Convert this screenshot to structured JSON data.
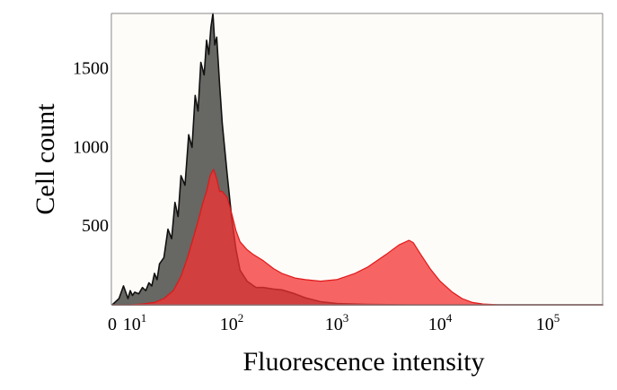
{
  "chart_data": {
    "type": "area",
    "xlabel": "Fluorescence intensity",
    "ylabel": "Cell count",
    "x_scale": "log",
    "xlim": [
      0,
      300000
    ],
    "ylim": [
      0,
      1850
    ],
    "grid": false,
    "legend": "none",
    "x_ticks": [
      {
        "base": "0",
        "exp": ""
      },
      {
        "base": "10",
        "exp": "1"
      },
      {
        "base": "10",
        "exp": "2"
      },
      {
        "base": "10",
        "exp": "3"
      },
      {
        "base": "10",
        "exp": "4"
      },
      {
        "base": "10",
        "exp": "5"
      }
    ],
    "y_ticks": [
      "500",
      "1000",
      "1500"
    ],
    "series": [
      {
        "color": "#5f5f5b",
        "points": [
          [
            0,
            0
          ],
          [
            3,
            40
          ],
          [
            5,
            120
          ],
          [
            6,
            80
          ],
          [
            7,
            40
          ],
          [
            8,
            90
          ],
          [
            9,
            60
          ],
          [
            10,
            80
          ],
          [
            11,
            70
          ],
          [
            12,
            110
          ],
          [
            13,
            90
          ],
          [
            14,
            140
          ],
          [
            15,
            120
          ],
          [
            16,
            200
          ],
          [
            17,
            160
          ],
          [
            18,
            260
          ],
          [
            20,
            300
          ],
          [
            22,
            480
          ],
          [
            24,
            420
          ],
          [
            26,
            650
          ],
          [
            28,
            560
          ],
          [
            30,
            820
          ],
          [
            33,
            760
          ],
          [
            36,
            1080
          ],
          [
            39,
            1000
          ],
          [
            42,
            1330
          ],
          [
            45,
            1230
          ],
          [
            48,
            1540
          ],
          [
            52,
            1460
          ],
          [
            55,
            1680
          ],
          [
            58,
            1590
          ],
          [
            61,
            1760
          ],
          [
            64,
            1850
          ],
          [
            67,
            1650
          ],
          [
            70,
            1700
          ],
          [
            75,
            1400
          ],
          [
            80,
            1150
          ],
          [
            90,
            820
          ],
          [
            100,
            550
          ],
          [
            110,
            350
          ],
          [
            120,
            220
          ],
          [
            140,
            150
          ],
          [
            170,
            110
          ],
          [
            200,
            110
          ],
          [
            250,
            100
          ],
          [
            300,
            95
          ],
          [
            400,
            70
          ],
          [
            500,
            45
          ],
          [
            700,
            20
          ],
          [
            1000,
            8
          ],
          [
            2000,
            2
          ],
          [
            5000,
            0
          ],
          [
            300000,
            0
          ]
        ]
      },
      {
        "color": "#f43232",
        "points": [
          [
            0,
            0
          ],
          [
            8,
            0
          ],
          [
            12,
            5
          ],
          [
            16,
            15
          ],
          [
            20,
            40
          ],
          [
            25,
            90
          ],
          [
            30,
            180
          ],
          [
            35,
            300
          ],
          [
            40,
            420
          ],
          [
            45,
            530
          ],
          [
            50,
            640
          ],
          [
            55,
            720
          ],
          [
            60,
            820
          ],
          [
            65,
            860
          ],
          [
            70,
            800
          ],
          [
            75,
            720
          ],
          [
            80,
            720
          ],
          [
            90,
            680
          ],
          [
            100,
            580
          ],
          [
            110,
            470
          ],
          [
            120,
            400
          ],
          [
            140,
            350
          ],
          [
            160,
            320
          ],
          [
            200,
            280
          ],
          [
            250,
            230
          ],
          [
            300,
            200
          ],
          [
            400,
            170
          ],
          [
            500,
            160
          ],
          [
            700,
            150
          ],
          [
            1000,
            160
          ],
          [
            1500,
            200
          ],
          [
            2000,
            240
          ],
          [
            3000,
            320
          ],
          [
            4000,
            380
          ],
          [
            5000,
            410
          ],
          [
            5500,
            395
          ],
          [
            6500,
            320
          ],
          [
            8000,
            230
          ],
          [
            10000,
            150
          ],
          [
            13000,
            80
          ],
          [
            16000,
            40
          ],
          [
            20000,
            15
          ],
          [
            25000,
            5
          ],
          [
            35000,
            0
          ],
          [
            300000,
            0
          ]
        ]
      }
    ]
  }
}
